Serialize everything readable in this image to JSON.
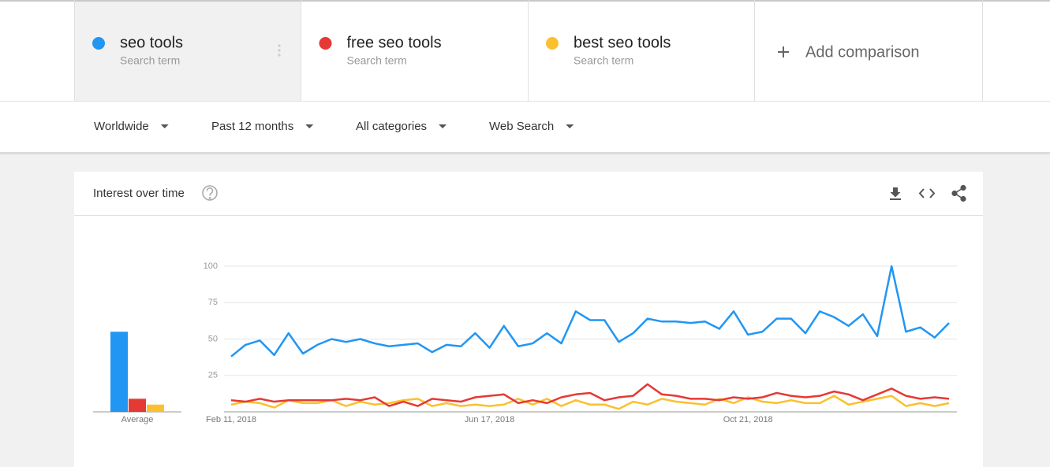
{
  "comparison": {
    "term_labels": [
      "Search term",
      "Search term",
      "Search term"
    ],
    "add": "Add comparison"
  },
  "filters": [
    "Worldwide",
    "Past 12 months",
    "All categories",
    "Web Search"
  ],
  "card_title": "Interest over time",
  "chart_data": {
    "type": "line",
    "categories": [
      "Feb 11, 2018",
      null,
      null,
      null,
      null,
      null,
      null,
      null,
      null,
      null,
      null,
      null,
      null,
      null,
      null,
      null,
      null,
      null,
      "Jun 17, 2018",
      null,
      null,
      null,
      null,
      null,
      null,
      null,
      null,
      null,
      null,
      null,
      null,
      null,
      null,
      null,
      null,
      null,
      "Oct 21, 2018",
      null,
      null,
      null,
      null,
      null,
      null,
      null,
      null,
      null,
      null,
      null,
      null,
      null,
      null
    ],
    "ylim": [
      0,
      100
    ],
    "yticks": [
      25,
      50,
      75,
      100
    ],
    "grid": true,
    "series": [
      {
        "name": "seo tools",
        "color": "#2196f3",
        "values": [
          38,
          46,
          49,
          39,
          54,
          40,
          46,
          50,
          48,
          50,
          47,
          45,
          46,
          47,
          41,
          46,
          45,
          54,
          44,
          59,
          45,
          47,
          54,
          47,
          69,
          63,
          63,
          48,
          54,
          64,
          62,
          62,
          61,
          62,
          57,
          69,
          53,
          55,
          64,
          64,
          54,
          69,
          65,
          59,
          67,
          52,
          100,
          55,
          58,
          51,
          61
        ]
      },
      {
        "name": "free seo tools",
        "color": "#e53935",
        "values": [
          8,
          7,
          9,
          7,
          8,
          8,
          8,
          8,
          9,
          8,
          10,
          4,
          7,
          4,
          9,
          8,
          7,
          10,
          11,
          12,
          6,
          8,
          6,
          10,
          12,
          13,
          8,
          10,
          11,
          19,
          12,
          11,
          9,
          9,
          8,
          10,
          9,
          10,
          13,
          11,
          10,
          11,
          14,
          12,
          8,
          12,
          16,
          11,
          9,
          10,
          9
        ]
      },
      {
        "name": "best seo tools",
        "color": "#fbc02d",
        "values": [
          5,
          7,
          6,
          3,
          8,
          6,
          6,
          8,
          4,
          7,
          5,
          6,
          8,
          9,
          4,
          6,
          4,
          5,
          4,
          5,
          9,
          5,
          9,
          4,
          8,
          5,
          5,
          2,
          7,
          5,
          9,
          7,
          6,
          5,
          9,
          6,
          10,
          7,
          6,
          8,
          6,
          6,
          11,
          5,
          7,
          9,
          11,
          4,
          6,
          4,
          6
        ]
      }
    ],
    "averages": {
      "label": "Average",
      "values": [
        55,
        9,
        5
      ]
    }
  }
}
